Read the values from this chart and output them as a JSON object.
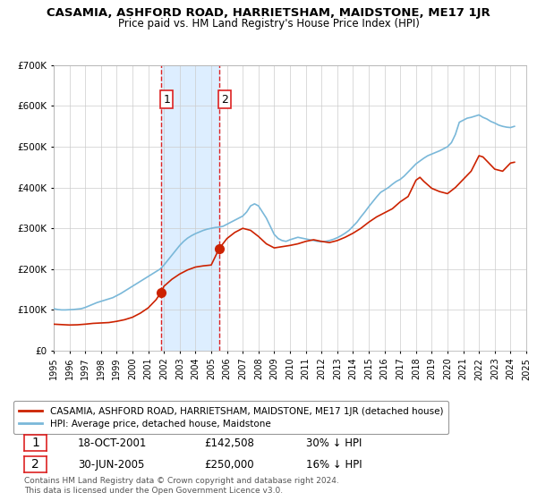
{
  "title": "CASAMIA, ASHFORD ROAD, HARRIETSHAM, MAIDSTONE, ME17 1JR",
  "subtitle": "Price paid vs. HM Land Registry's House Price Index (HPI)",
  "legend_line1": "CASAMIA, ASHFORD ROAD, HARRIETSHAM, MAIDSTONE, ME17 1JR (detached house)",
  "legend_line2": "HPI: Average price, detached house, Maidstone",
  "transaction1_date": "18-OCT-2001",
  "transaction1_price": "£142,508",
  "transaction1_hpi": "30% ↓ HPI",
  "transaction2_date": "30-JUN-2005",
  "transaction2_price": "£250,000",
  "transaction2_hpi": "16% ↓ HPI",
  "footer": "Contains HM Land Registry data © Crown copyright and database right 2024.\nThis data is licensed under the Open Government Licence v3.0.",
  "hpi_color": "#7ab8d9",
  "price_color": "#cc2200",
  "highlight_color": "#ddeeff",
  "transaction1_x": 2001.8,
  "transaction2_x": 2005.5,
  "ylim_max": 700000,
  "yticks": [
    0,
    100000,
    200000,
    300000,
    400000,
    500000,
    600000,
    700000
  ],
  "hpi_years": [
    1995.0,
    1995.25,
    1995.5,
    1995.75,
    1996.0,
    1996.25,
    1996.5,
    1996.75,
    1997.0,
    1997.25,
    1997.5,
    1997.75,
    1998.0,
    1998.25,
    1998.5,
    1998.75,
    1999.0,
    1999.25,
    1999.5,
    1999.75,
    2000.0,
    2000.25,
    2000.5,
    2000.75,
    2001.0,
    2001.25,
    2001.5,
    2001.75,
    2002.0,
    2002.25,
    2002.5,
    2002.75,
    2003.0,
    2003.25,
    2003.5,
    2003.75,
    2004.0,
    2004.25,
    2004.5,
    2004.75,
    2005.0,
    2005.25,
    2005.5,
    2005.75,
    2006.0,
    2006.25,
    2006.5,
    2006.75,
    2007.0,
    2007.25,
    2007.5,
    2007.75,
    2008.0,
    2008.25,
    2008.5,
    2008.75,
    2009.0,
    2009.25,
    2009.5,
    2009.75,
    2010.0,
    2010.25,
    2010.5,
    2010.75,
    2011.0,
    2011.25,
    2011.5,
    2011.75,
    2012.0,
    2012.25,
    2012.5,
    2012.75,
    2013.0,
    2013.25,
    2013.5,
    2013.75,
    2014.0,
    2014.25,
    2014.5,
    2014.75,
    2015.0,
    2015.25,
    2015.5,
    2015.75,
    2016.0,
    2016.25,
    2016.5,
    2016.75,
    2017.0,
    2017.25,
    2017.5,
    2017.75,
    2018.0,
    2018.25,
    2018.5,
    2018.75,
    2019.0,
    2019.25,
    2019.5,
    2019.75,
    2020.0,
    2020.25,
    2020.5,
    2020.75,
    2021.0,
    2021.25,
    2021.5,
    2021.75,
    2022.0,
    2022.25,
    2022.5,
    2022.75,
    2023.0,
    2023.25,
    2023.5,
    2023.75,
    2024.0,
    2024.25
  ],
  "hpi_values": [
    103000,
    101000,
    100000,
    100000,
    100500,
    101000,
    102000,
    103000,
    106000,
    110000,
    114000,
    118000,
    121000,
    124000,
    127000,
    130000,
    135000,
    140000,
    146000,
    152000,
    158000,
    164000,
    170000,
    176000,
    182000,
    188000,
    194000,
    200000,
    210000,
    222000,
    234000,
    246000,
    258000,
    268000,
    276000,
    282000,
    287000,
    291000,
    295000,
    298000,
    300000,
    302000,
    303000,
    305000,
    310000,
    315000,
    320000,
    325000,
    330000,
    340000,
    355000,
    360000,
    355000,
    340000,
    325000,
    305000,
    285000,
    275000,
    270000,
    268000,
    272000,
    275000,
    278000,
    276000,
    274000,
    272000,
    270000,
    268000,
    267000,
    268000,
    270000,
    273000,
    277000,
    282000,
    288000,
    295000,
    305000,
    315000,
    328000,
    340000,
    353000,
    365000,
    377000,
    388000,
    394000,
    400000,
    408000,
    415000,
    420000,
    428000,
    438000,
    448000,
    458000,
    465000,
    472000,
    478000,
    482000,
    486000,
    490000,
    495000,
    500000,
    510000,
    530000,
    560000,
    565000,
    570000,
    572000,
    575000,
    578000,
    572000,
    568000,
    562000,
    558000,
    553000,
    550000,
    548000,
    547000,
    550000
  ],
  "red_years": [
    1995.0,
    1995.5,
    1996.0,
    1996.5,
    1997.0,
    1997.5,
    1998.0,
    1998.5,
    1999.0,
    1999.5,
    2000.0,
    2000.5,
    2001.0,
    2001.5,
    2001.8,
    2002.0,
    2002.5,
    2003.0,
    2003.5,
    2004.0,
    2004.5,
    2005.0,
    2005.5,
    2006.0,
    2006.5,
    2007.0,
    2007.5,
    2008.0,
    2008.5,
    2009.0,
    2009.5,
    2010.0,
    2010.5,
    2011.0,
    2011.5,
    2012.0,
    2012.5,
    2013.0,
    2013.5,
    2014.0,
    2014.5,
    2015.0,
    2015.5,
    2016.0,
    2016.5,
    2017.0,
    2017.5,
    2018.0,
    2018.25,
    2018.5,
    2019.0,
    2019.5,
    2020.0,
    2020.5,
    2021.0,
    2021.5,
    2022.0,
    2022.25,
    2022.5,
    2023.0,
    2023.5,
    2024.0,
    2024.25
  ],
  "red_values": [
    65000,
    64000,
    63000,
    63500,
    65000,
    67000,
    68000,
    69000,
    72000,
    76000,
    82000,
    92000,
    105000,
    125000,
    142508,
    158000,
    175000,
    188000,
    198000,
    205000,
    208000,
    210000,
    250000,
    275000,
    290000,
    300000,
    295000,
    280000,
    262000,
    252000,
    255000,
    258000,
    262000,
    268000,
    272000,
    268000,
    265000,
    270000,
    278000,
    288000,
    300000,
    315000,
    328000,
    338000,
    348000,
    365000,
    378000,
    418000,
    425000,
    415000,
    398000,
    390000,
    385000,
    400000,
    420000,
    440000,
    478000,
    475000,
    465000,
    445000,
    440000,
    460000,
    462000
  ]
}
